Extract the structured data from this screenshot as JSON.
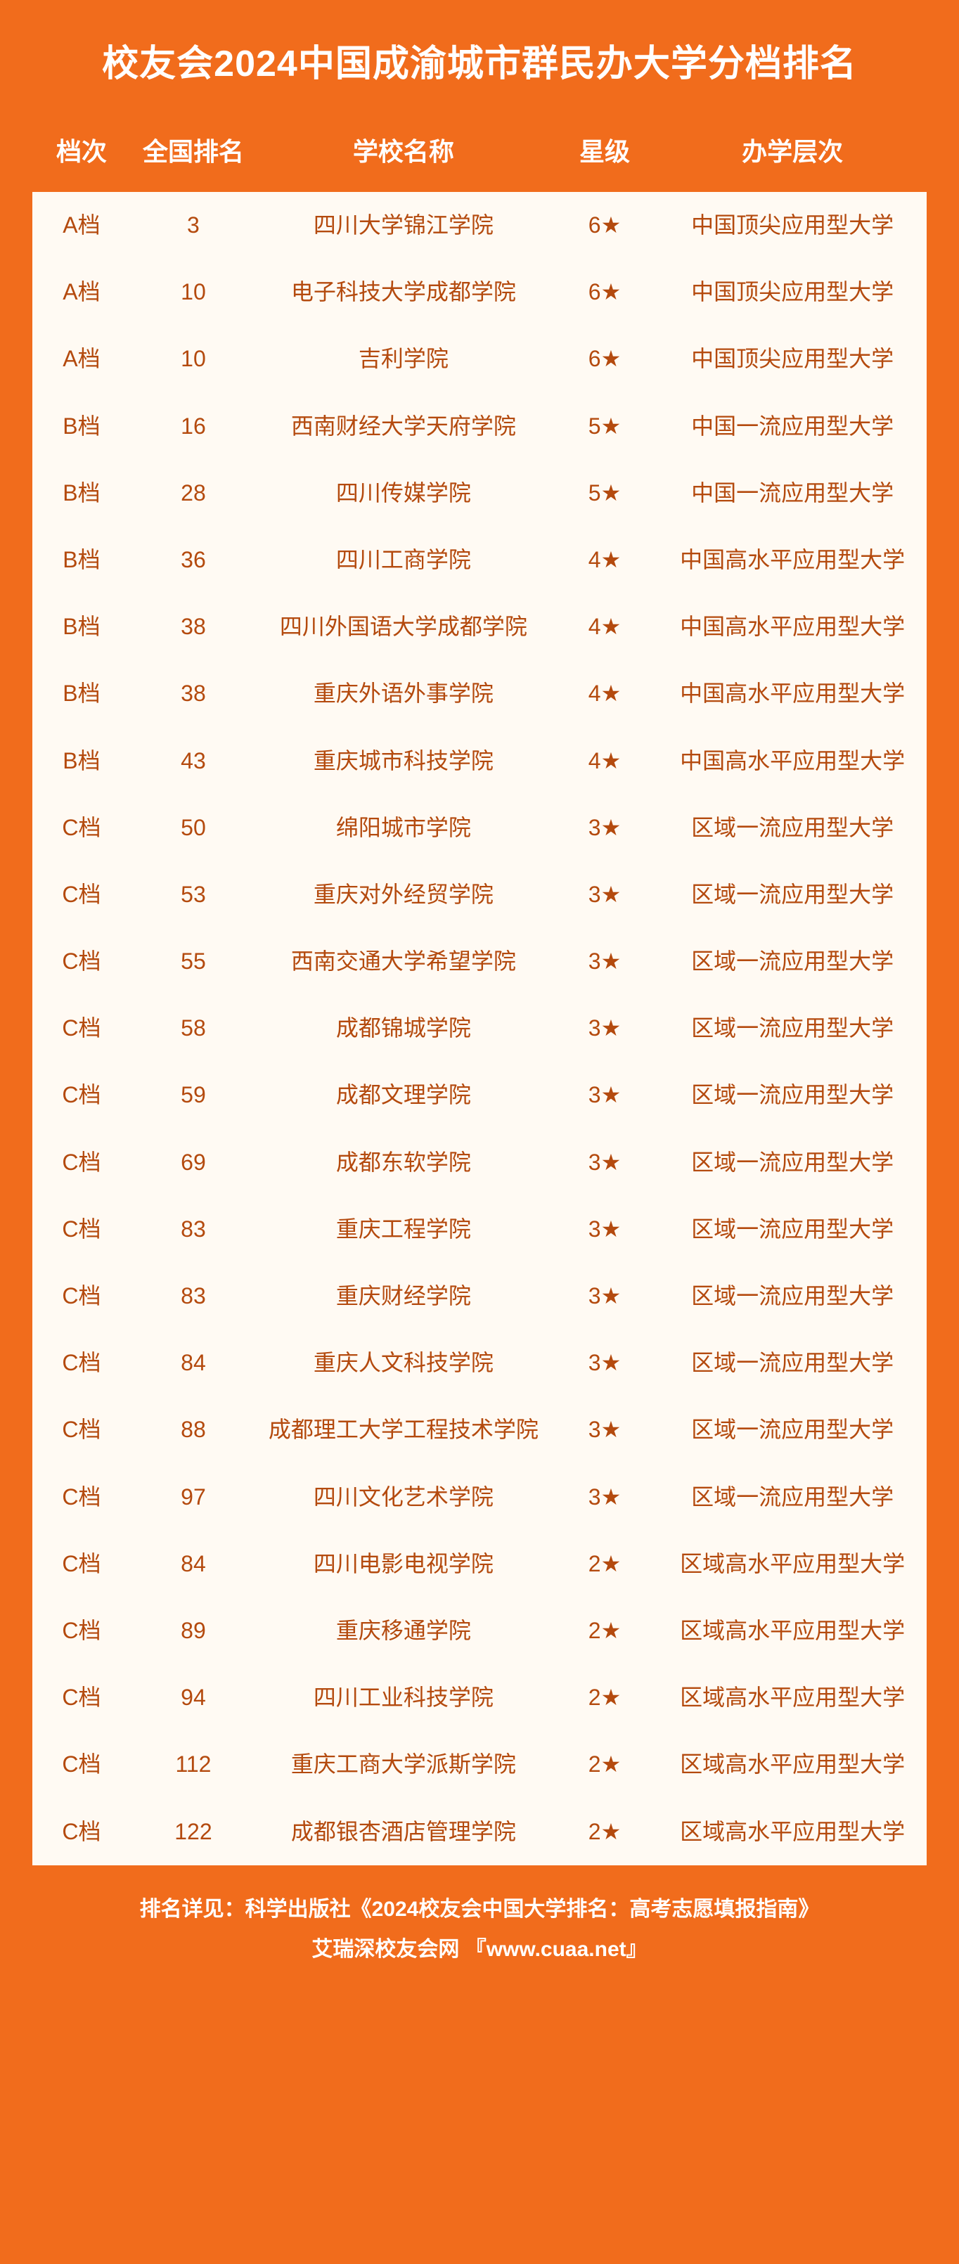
{
  "title": "校友会2024中国成渝城市群民办大学分档排名",
  "columns": [
    "档次",
    "全国排名",
    "学校名称",
    "星级",
    "办学层次"
  ],
  "rows": [
    [
      "A档",
      "3",
      "四川大学锦江学院",
      "6★",
      "中国顶尖应用型大学"
    ],
    [
      "A档",
      "10",
      "电子科技大学成都学院",
      "6★",
      "中国顶尖应用型大学"
    ],
    [
      "A档",
      "10",
      "吉利学院",
      "6★",
      "中国顶尖应用型大学"
    ],
    [
      "B档",
      "16",
      "西南财经大学天府学院",
      "5★",
      "中国一流应用型大学"
    ],
    [
      "B档",
      "28",
      "四川传媒学院",
      "5★",
      "中国一流应用型大学"
    ],
    [
      "B档",
      "36",
      "四川工商学院",
      "4★",
      "中国高水平应用型大学"
    ],
    [
      "B档",
      "38",
      "四川外国语大学成都学院",
      "4★",
      "中国高水平应用型大学"
    ],
    [
      "B档",
      "38",
      "重庆外语外事学院",
      "4★",
      "中国高水平应用型大学"
    ],
    [
      "B档",
      "43",
      "重庆城市科技学院",
      "4★",
      "中国高水平应用型大学"
    ],
    [
      "C档",
      "50",
      "绵阳城市学院",
      "3★",
      "区域一流应用型大学"
    ],
    [
      "C档",
      "53",
      "重庆对外经贸学院",
      "3★",
      "区域一流应用型大学"
    ],
    [
      "C档",
      "55",
      "西南交通大学希望学院",
      "3★",
      "区域一流应用型大学"
    ],
    [
      "C档",
      "58",
      "成都锦城学院",
      "3★",
      "区域一流应用型大学"
    ],
    [
      "C档",
      "59",
      "成都文理学院",
      "3★",
      "区域一流应用型大学"
    ],
    [
      "C档",
      "69",
      "成都东软学院",
      "3★",
      "区域一流应用型大学"
    ],
    [
      "C档",
      "83",
      "重庆工程学院",
      "3★",
      "区域一流应用型大学"
    ],
    [
      "C档",
      "83",
      "重庆财经学院",
      "3★",
      "区域一流应用型大学"
    ],
    [
      "C档",
      "84",
      "重庆人文科技学院",
      "3★",
      "区域一流应用型大学"
    ],
    [
      "C档",
      "88",
      "成都理工大学工程技术学院",
      "3★",
      "区域一流应用型大学"
    ],
    [
      "C档",
      "97",
      "四川文化艺术学院",
      "3★",
      "区域一流应用型大学"
    ],
    [
      "C档",
      "84",
      "四川电影电视学院",
      "2★",
      "区域高水平应用型大学"
    ],
    [
      "C档",
      "89",
      "重庆移通学院",
      "2★",
      "区域高水平应用型大学"
    ],
    [
      "C档",
      "94",
      "四川工业科技学院",
      "2★",
      "区域高水平应用型大学"
    ],
    [
      "C档",
      "112",
      "重庆工商大学派斯学院",
      "2★",
      "区域高水平应用型大学"
    ],
    [
      "C档",
      "122",
      "成都银杏酒店管理学院",
      "2★",
      "区域高水平应用型大学"
    ]
  ],
  "footer_line1": "排名详见：科学出版社《2024校友会中国大学排名：高考志愿填报指南》",
  "footer_line2": "艾瑞深校友会网 『www.cuaa.net』",
  "colors": {
    "brand_bg": "#f16c1c",
    "table_bg": "#fffaf3",
    "cell_text": "#b44a0e",
    "header_text": "#ffffff"
  },
  "typography": {
    "title_fontsize": 52,
    "header_fontsize": 36,
    "cell_fontsize": 32,
    "footer_fontsize": 30
  },
  "table_layout": {
    "col_widths_pct": [
      11,
      14,
      33,
      12,
      30
    ],
    "row_padding_v": 26
  }
}
